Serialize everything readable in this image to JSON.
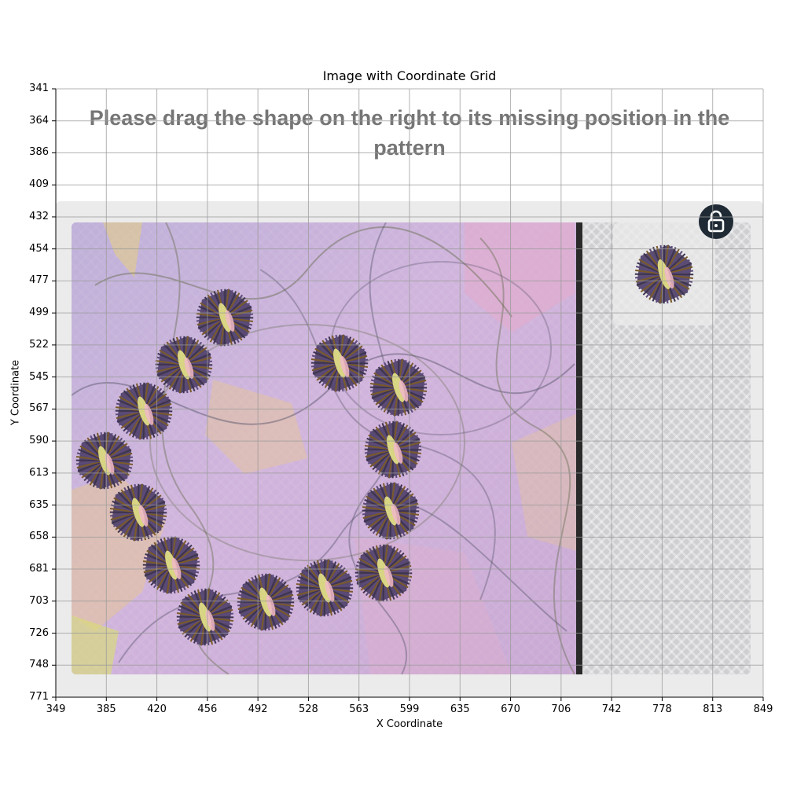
{
  "figure": {
    "title": "Image with Coordinate Grid",
    "xlabel": "X Coordinate",
    "ylabel": "Y Coordinate",
    "x_ticks": [
      "349",
      "385",
      "420",
      "456",
      "492",
      "528",
      "563",
      "599",
      "635",
      "670",
      "706",
      "742",
      "778",
      "813",
      "849"
    ],
    "y_ticks": [
      "341",
      "364",
      "386",
      "409",
      "432",
      "454",
      "477",
      "499",
      "522",
      "545",
      "567",
      "590",
      "613",
      "635",
      "658",
      "681",
      "703",
      "726",
      "748",
      "771"
    ]
  },
  "captcha": {
    "instruction": "Please drag the shape on the right to its missing position in the pattern",
    "lock_icon": "unlock-icon",
    "piece_icon": "hexagon-burst-icon",
    "colors": {
      "instruction_text": "#757575",
      "lock_button": "#1f2a35",
      "divider": "#2a2a2a",
      "piece_dark": "#4a3d62",
      "piece_warm": "#7a5a2a",
      "piece_core": "#e6e48a"
    }
  }
}
